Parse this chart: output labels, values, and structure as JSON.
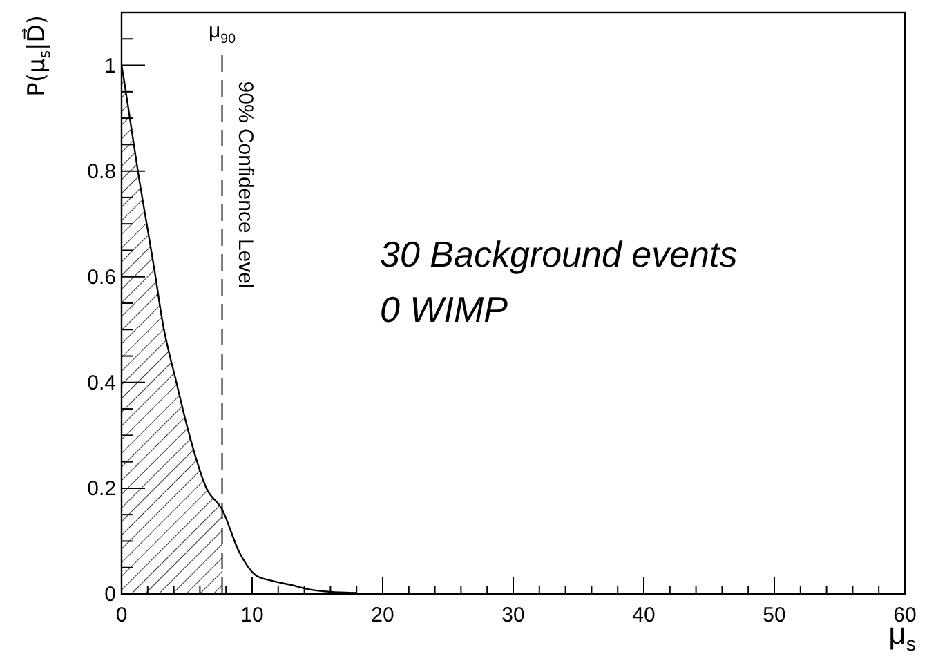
{
  "chart_data": {
    "type": "line",
    "xlabel": "μ$_{s}$",
    "ylabel": "P(μ$_{s}$|D⃗)",
    "xlim": [
      0,
      60
    ],
    "ylim": [
      0,
      1.1
    ],
    "xticks": [
      0,
      {
        "value": 2,
        "label": null
      },
      {
        "value": 4,
        "label": null
      },
      {
        "value": 6,
        "label": null
      },
      {
        "value": 8,
        "label": null
      },
      10,
      {
        "value": 12,
        "label": null
      },
      {
        "value": 14,
        "label": null
      },
      {
        "value": 16,
        "label": null
      },
      {
        "value": 18,
        "label": null
      },
      20,
      {
        "value": 22,
        "label": null
      },
      {
        "value": 24,
        "label": null
      },
      {
        "value": 26,
        "label": null
      },
      {
        "value": 28,
        "label": null
      },
      30,
      {
        "value": 32,
        "label": null
      },
      {
        "value": 34,
        "label": null
      },
      {
        "value": 36,
        "label": null
      },
      {
        "value": 38,
        "label": null
      },
      40,
      {
        "value": 42,
        "label": null
      },
      {
        "value": 44,
        "label": null
      },
      {
        "value": 46,
        "label": null
      },
      {
        "value": 48,
        "label": null
      },
      50,
      {
        "value": 52,
        "label": null
      },
      {
        "value": 54,
        "label": null
      },
      {
        "value": 56,
        "label": null
      },
      {
        "value": 58,
        "label": null
      },
      60
    ],
    "yticks": [
      0,
      {
        "value": 0.05,
        "label": null
      },
      {
        "value": 0.1,
        "label": null
      },
      {
        "value": 0.15,
        "label": null
      },
      0.2,
      {
        "value": 0.25,
        "label": null
      },
      {
        "value": 0.3,
        "label": null
      },
      {
        "value": 0.35,
        "label": null
      },
      0.4,
      {
        "value": 0.45,
        "label": null
      },
      {
        "value": 0.5,
        "label": null
      },
      {
        "value": 0.55,
        "label": null
      },
      0.6,
      {
        "value": 0.65,
        "label": null
      },
      {
        "value": 0.7,
        "label": null
      },
      {
        "value": 0.75,
        "label": null
      },
      0.8,
      {
        "value": 0.85,
        "label": null
      },
      {
        "value": 0.9,
        "label": null
      },
      {
        "value": 0.95,
        "label": null
      },
      1,
      {
        "value": 1.05,
        "label": null
      }
    ],
    "grid": false,
    "marker": "none",
    "series": [
      {
        "type": "area",
        "color": "#000000",
        "x": [
          0,
          0.2,
          1.25,
          2.6,
          3.1,
          4.2,
          5.2,
          6.5,
          7.7
        ],
        "values": [
          1.0,
          0.97,
          0.8,
          0.6,
          0.52,
          0.4,
          0.3,
          0.2,
          0.16
        ]
      },
      {
        "color": "#000000",
        "x": [
          0,
          0.2,
          1.25,
          2.6,
          3.1,
          4.2,
          5.2,
          6.5,
          7.7,
          9.0,
          10.3,
          11.5,
          13.0,
          14.5,
          16.0,
          18.0
        ],
        "values": [
          1.0,
          0.97,
          0.8,
          0.6,
          0.52,
          0.4,
          0.3,
          0.2,
          0.16,
          0.08,
          0.035,
          0.025,
          0.017,
          0.008,
          0.004,
          0.002
        ]
      }
    ],
    "ref_lines": [
      {
        "axis": "x",
        "value": 7.7,
        "label": "μ$_{90}$",
        "color": "#000000",
        "line_style": "dashed"
      }
    ],
    "annotations": [
      {
        "text": "90% Confidence Level",
        "x": 7.7,
        "y": 0.97
      },
      "30 Background events",
      "0 WIMP"
    ]
  }
}
